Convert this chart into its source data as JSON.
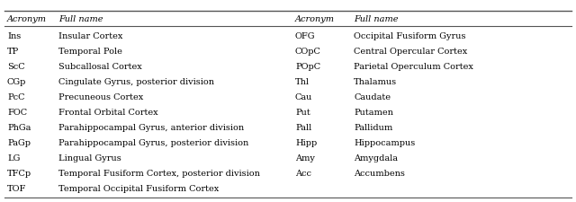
{
  "left_data": [
    [
      "Ins",
      "Insular Cortex"
    ],
    [
      "TP",
      "Temporal Pole"
    ],
    [
      "ScC",
      "Subcallosal Cortex"
    ],
    [
      "CGp",
      "Cingulate Gyrus, posterior division"
    ],
    [
      "PcC",
      "Precuneous Cortex"
    ],
    [
      "FOC",
      "Frontal Orbital Cortex"
    ],
    [
      "PhGa",
      "Parahippocampal Gyrus, anterior division"
    ],
    [
      "PaGp",
      "Parahippocampal Gyrus, posterior division"
    ],
    [
      "LG",
      "Lingual Gyrus"
    ],
    [
      "TFCp",
      "Temporal Fusiform Cortex, posterior division"
    ],
    [
      "TOF",
      "Temporal Occipital Fusiform Cortex"
    ]
  ],
  "right_data": [
    [
      "OFG",
      "Occipital Fusiform Gyrus"
    ],
    [
      "COpC",
      "Central Opercular Cortex"
    ],
    [
      "POpC",
      "Parietal Operculum Cortex"
    ],
    [
      "Thl",
      "Thalamus"
    ],
    [
      "Cau",
      "Caudate"
    ],
    [
      "Put",
      "Putamen"
    ],
    [
      "Pall",
      "Pallidum"
    ],
    [
      "Hipp",
      "Hippocampus"
    ],
    [
      "Amy",
      "Amygdala"
    ],
    [
      "Acc",
      "Accumbens"
    ],
    [
      "",
      ""
    ]
  ],
  "col_headers": [
    "Acronym",
    "Full name",
    "Acronym",
    "Full name"
  ],
  "font_size": 7.0,
  "header_font_size": 7.0,
  "bg_color": "#ffffff",
  "text_color": "#000000",
  "line_color": "#555555"
}
